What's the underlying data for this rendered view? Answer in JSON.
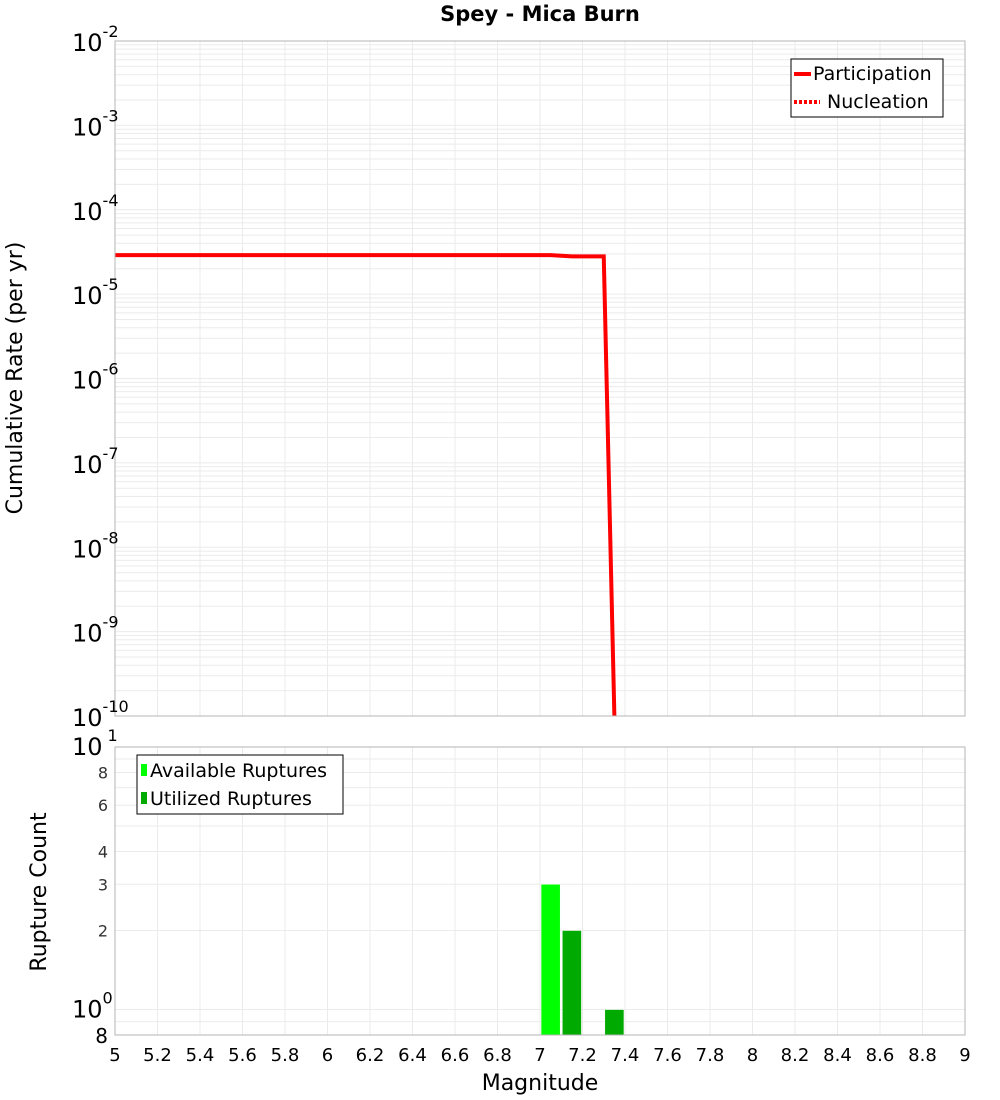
{
  "chart_data": [
    {
      "type": "line",
      "title": "Spey - Mica Burn",
      "xlabel": "Magnitude",
      "ylabel": "Cumulative Rate (per yr)",
      "yscale": "log",
      "xlim": [
        5,
        9
      ],
      "ylim": [
        1e-10,
        0.01
      ],
      "grid": true,
      "legend_position": "upper right",
      "y_tick_labels": [
        {
          "base": "10",
          "exp": "-2",
          "value": -2
        },
        {
          "base": "10",
          "exp": "-3",
          "value": -3
        },
        {
          "base": "10",
          "exp": "-4",
          "value": -4
        },
        {
          "base": "10",
          "exp": "-5",
          "value": -5
        },
        {
          "base": "10",
          "exp": "-6",
          "value": -6
        },
        {
          "base": "10",
          "exp": "-7",
          "value": -7
        },
        {
          "base": "10",
          "exp": "-8",
          "value": -8
        },
        {
          "base": "10",
          "exp": "-9",
          "value": -9
        },
        {
          "base": "10",
          "exp": "-10",
          "value": -10
        }
      ],
      "series": [
        {
          "name": "Participation",
          "style": "solid",
          "color": "#ff0000",
          "x": [
            5.0,
            7.05,
            7.15,
            7.25,
            7.3,
            7.35
          ],
          "y": [
            2.9e-05,
            2.9e-05,
            2.8e-05,
            2.8e-05,
            2.8e-05,
            1e-10
          ]
        },
        {
          "name": "Nucleation",
          "style": "dotted",
          "color": "#ff0000",
          "x": [
            5.0,
            7.05,
            7.15,
            7.25,
            7.3,
            7.35
          ],
          "y": [
            2.9e-05,
            2.9e-05,
            2.8e-05,
            2.8e-05,
            2.8e-05,
            1e-10
          ]
        }
      ]
    },
    {
      "type": "bar",
      "xlabel": "Magnitude",
      "ylabel": "Rupture Count",
      "yscale": "log",
      "xlim": [
        5,
        9
      ],
      "ylim": [
        0.8,
        10
      ],
      "grid": true,
      "legend_position": "upper left",
      "y_tick_labels": [
        {
          "label": "10",
          "exp": "1",
          "value": 10,
          "major": true
        },
        {
          "label": "8",
          "value": 8
        },
        {
          "label": "6",
          "value": 6
        },
        {
          "label": "4",
          "value": 4
        },
        {
          "label": "3",
          "value": 3
        },
        {
          "label": "2",
          "value": 2
        },
        {
          "label": "10",
          "exp": "0",
          "value": 1,
          "major": true
        },
        {
          "label": "8",
          "value": 0.8,
          "bottom": true
        }
      ],
      "series": [
        {
          "name": "Available Ruptures",
          "color": "#00ff00",
          "x": [
            7.05
          ],
          "values": [
            3
          ],
          "bar_width": 0.09
        },
        {
          "name": "Utilized Ruptures",
          "color": "#00aa00",
          "x": [
            7.15,
            7.35
          ],
          "values": [
            2,
            1
          ],
          "bar_width": 0.09
        }
      ]
    }
  ],
  "x_tick_labels": [
    "5",
    "5.2",
    "5.4",
    "5.6",
    "5.8",
    "6",
    "6.2",
    "6.4",
    "6.6",
    "6.8",
    "7",
    "7.2",
    "7.4",
    "7.6",
    "7.8",
    "8",
    "8.2",
    "8.4",
    "8.6",
    "8.8",
    "9"
  ],
  "labels": {
    "title": "Spey - Mica Burn",
    "top_ylabel": "Cumulative Rate (per yr)",
    "bottom_ylabel": "Rupture Count",
    "xlabel": "Magnitude",
    "legend_top": [
      "Participation",
      "Nucleation"
    ],
    "legend_bottom": [
      "Available Ruptures",
      "Utilized Ruptures"
    ]
  },
  "colors": {
    "line": "#ff0000",
    "available": "#00ff00",
    "utilized": "#00aa00",
    "grid": "#ebebeb",
    "frame": "#b4b4b4"
  }
}
